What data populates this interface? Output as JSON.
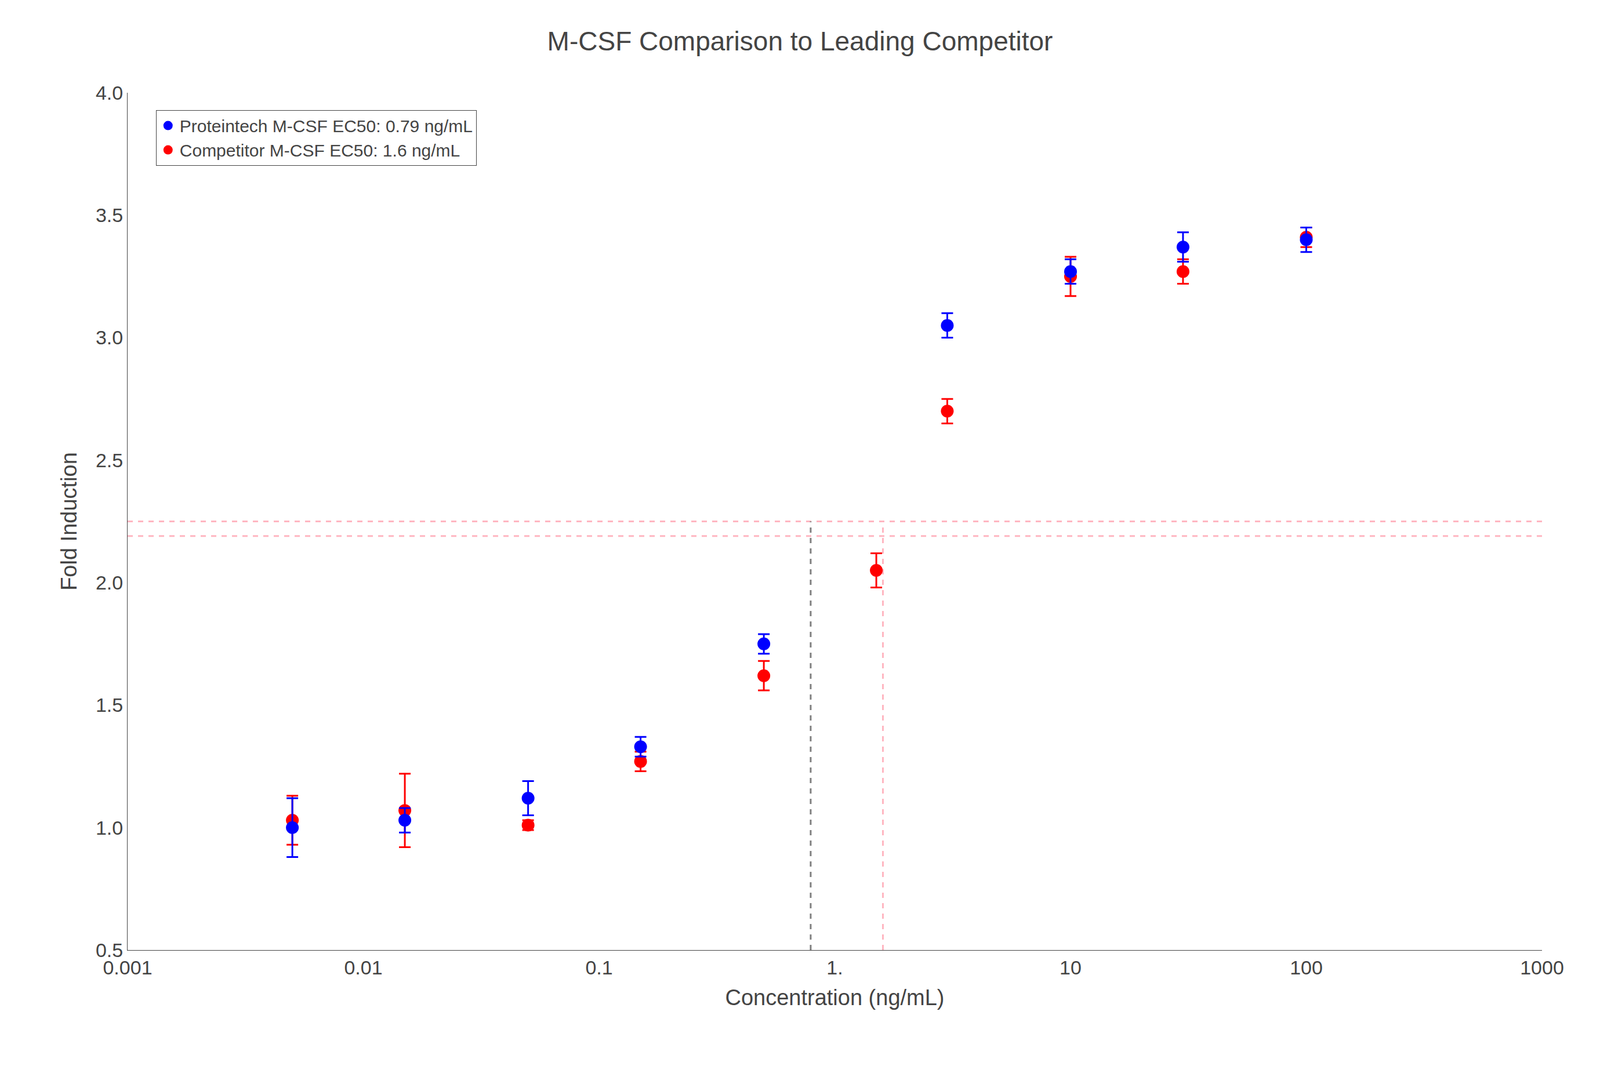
{
  "chart_data": {
    "type": "scatter",
    "title": "M-CSF Comparison to Leading Competitor",
    "x_label": "Concentration (ng/mL)",
    "y_label": "Fold Induction",
    "log": "x",
    "grid": false,
    "legend": "upper left",
    "xlim": [
      0.001,
      1000.0
    ],
    "xticks": [
      0.001,
      0.01,
      0.1,
      {
        "value": 1.0,
        "label": "1."
      },
      10,
      100,
      1000
    ],
    "ylim": [
      0.5,
      4.0
    ],
    "yticks": [
      0.5,
      {
        "value": 1.0,
        "label": "1.0"
      },
      1.5,
      {
        "value": 2.0,
        "label": "2.0"
      },
      2.5,
      {
        "value": 3.0,
        "label": "3.0"
      },
      3.5,
      {
        "value": 4.0,
        "label": "4.0"
      }
    ],
    "series": [
      {
        "name": "Competitor M-CSF EC50: 1.6 ng/mL",
        "color": "#FF0000",
        "marker": "circle",
        "x": [
          0.005,
          0.015,
          0.05,
          0.15,
          0.5,
          1.5,
          3.0,
          10.0,
          30.0,
          100.0
        ],
        "values": [
          1.03,
          1.07,
          1.01,
          1.27,
          1.62,
          2.05,
          2.7,
          3.25,
          3.27,
          3.41
        ],
        "error": [
          0.1,
          0.15,
          0.02,
          0.04,
          0.06,
          0.07,
          0.05,
          0.08,
          0.05,
          0.04
        ]
      },
      {
        "name": "Proteintech M-CSF EC50: 0.79 ng/mL",
        "color": "#0000FF",
        "marker": "circle",
        "x": [
          0.005,
          0.015,
          0.05,
          0.15,
          0.5,
          3.0,
          10.0,
          30.0,
          100.0
        ],
        "values": [
          1.0,
          1.03,
          1.12,
          1.33,
          1.75,
          3.05,
          3.27,
          3.37,
          3.4
        ],
        "error": [
          0.12,
          0.05,
          0.07,
          0.04,
          0.04,
          0.05,
          0.05,
          0.06,
          0.05
        ]
      }
    ],
    "horizontal_lines": [
      {
        "y": 2.19,
        "color": "#FFB6C1",
        "line_style": "dashed"
      },
      {
        "y": 2.25,
        "color": "#FFB6C1",
        "line_style": "dashed"
      }
    ],
    "vertical_lines": [
      {
        "x": 0.79,
        "to": 2.25,
        "color": "gray",
        "line_style": "dashed"
      },
      {
        "x": 1.6,
        "to": 2.25,
        "color": "#FFB6C1",
        "line_style": "dashed"
      }
    ]
  }
}
